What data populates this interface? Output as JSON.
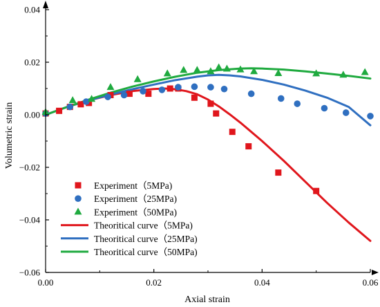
{
  "chart_data": {
    "type": "scatter",
    "title": "",
    "xlabel": "Axial strain",
    "ylabel": "Volumetric strain",
    "xlim": [
      0,
      0.06
    ],
    "ylim": [
      -0.06,
      0.04
    ],
    "xticks": [
      0.0,
      0.02,
      0.04,
      0.06
    ],
    "xtick_labels": [
      "0.00",
      "0.02",
      "0.04",
      "0.06"
    ],
    "yticks": [
      -0.06,
      -0.04,
      -0.02,
      0.0,
      0.02,
      0.04
    ],
    "ytick_labels": [
      "−0.06",
      "−0.04",
      "−0.02",
      "0.00",
      "0.02",
      "0.04"
    ],
    "grid": false,
    "legend_position": "bottom-left",
    "series": [
      {
        "name": "Experiment（5MPa)",
        "kind": "points",
        "marker": "square",
        "color": "#e0161c",
        "points": [
          [
            0.0,
            0.0005
          ],
          [
            0.0025,
            0.0015
          ],
          [
            0.0045,
            0.003
          ],
          [
            0.0065,
            0.004
          ],
          [
            0.008,
            0.0045
          ],
          [
            0.012,
            0.0075
          ],
          [
            0.0155,
            0.008
          ],
          [
            0.019,
            0.008
          ],
          [
            0.023,
            0.01
          ],
          [
            0.0245,
            0.01
          ],
          [
            0.0275,
            0.0065
          ],
          [
            0.0305,
            0.0042
          ],
          [
            0.0315,
            0.0005
          ],
          [
            0.0345,
            -0.0065
          ],
          [
            0.0375,
            -0.012
          ],
          [
            0.043,
            -0.022
          ],
          [
            0.05,
            -0.029
          ]
        ]
      },
      {
        "name": "Experiment（25MPa)",
        "kind": "points",
        "marker": "circle",
        "color": "#2f6fc0",
        "points": [
          [
            0.0,
            0.0005
          ],
          [
            0.0045,
            0.003
          ],
          [
            0.0075,
            0.005
          ],
          [
            0.0115,
            0.0068
          ],
          [
            0.0145,
            0.0075
          ],
          [
            0.018,
            0.009
          ],
          [
            0.0215,
            0.0095
          ],
          [
            0.0245,
            0.0105
          ],
          [
            0.0275,
            0.0107
          ],
          [
            0.0305,
            0.0105
          ],
          [
            0.033,
            0.0098
          ],
          [
            0.038,
            0.008
          ],
          [
            0.0435,
            0.0062
          ],
          [
            0.0465,
            0.0042
          ],
          [
            0.0515,
            0.0025
          ],
          [
            0.0555,
            0.0008
          ],
          [
            0.06,
            -0.0005
          ]
        ]
      },
      {
        "name": "Experiment（50MPa)",
        "kind": "points",
        "marker": "triangle",
        "color": "#1faa3f",
        "points": [
          [
            0.0,
            0.001
          ],
          [
            0.005,
            0.0055
          ],
          [
            0.0085,
            0.006
          ],
          [
            0.012,
            0.0105
          ],
          [
            0.017,
            0.0135
          ],
          [
            0.0225,
            0.0157
          ],
          [
            0.0255,
            0.017
          ],
          [
            0.028,
            0.017
          ],
          [
            0.0305,
            0.0165
          ],
          [
            0.032,
            0.018
          ],
          [
            0.0335,
            0.0175
          ],
          [
            0.036,
            0.0172
          ],
          [
            0.0385,
            0.0165
          ],
          [
            0.043,
            0.0158
          ],
          [
            0.05,
            0.0157
          ],
          [
            0.055,
            0.0152
          ],
          [
            0.059,
            0.0162
          ]
        ]
      },
      {
        "name": "Theoritical curve（5MPa)",
        "kind": "line",
        "color": "#e0161c",
        "points": [
          [
            0.0,
            0.0
          ],
          [
            0.004,
            0.003
          ],
          [
            0.008,
            0.0055
          ],
          [
            0.012,
            0.0075
          ],
          [
            0.016,
            0.009
          ],
          [
            0.02,
            0.0098
          ],
          [
            0.022,
            0.01
          ],
          [
            0.024,
            0.0097
          ],
          [
            0.026,
            0.009
          ],
          [
            0.028,
            0.0078
          ],
          [
            0.03,
            0.0058
          ],
          [
            0.032,
            0.0032
          ],
          [
            0.034,
            0.0002
          ],
          [
            0.036,
            -0.003
          ],
          [
            0.038,
            -0.0065
          ],
          [
            0.04,
            -0.01
          ],
          [
            0.044,
            -0.0175
          ],
          [
            0.048,
            -0.0255
          ],
          [
            0.052,
            -0.0335
          ],
          [
            0.056,
            -0.041
          ],
          [
            0.06,
            -0.048
          ]
        ]
      },
      {
        "name": "Theoritical curve（25MPa)",
        "kind": "line",
        "color": "#2f6fc0",
        "points": [
          [
            0.0,
            0.0
          ],
          [
            0.004,
            0.003
          ],
          [
            0.008,
            0.0055
          ],
          [
            0.012,
            0.0077
          ],
          [
            0.016,
            0.0097
          ],
          [
            0.02,
            0.0115
          ],
          [
            0.024,
            0.0132
          ],
          [
            0.028,
            0.0145
          ],
          [
            0.03,
            0.015
          ],
          [
            0.032,
            0.0152
          ],
          [
            0.034,
            0.015
          ],
          [
            0.036,
            0.0146
          ],
          [
            0.04,
            0.0133
          ],
          [
            0.044,
            0.0115
          ],
          [
            0.048,
            0.0092
          ],
          [
            0.052,
            0.0065
          ],
          [
            0.056,
            0.003
          ],
          [
            0.06,
            -0.004
          ]
        ]
      },
      {
        "name": "Theoritical curve（50MPa)",
        "kind": "line",
        "color": "#1faa3f",
        "points": [
          [
            0.0,
            0.0
          ],
          [
            0.004,
            0.003
          ],
          [
            0.008,
            0.0058
          ],
          [
            0.012,
            0.0084
          ],
          [
            0.016,
            0.0107
          ],
          [
            0.02,
            0.0127
          ],
          [
            0.024,
            0.0145
          ],
          [
            0.028,
            0.016
          ],
          [
            0.032,
            0.017
          ],
          [
            0.036,
            0.0176
          ],
          [
            0.038,
            0.0177
          ],
          [
            0.04,
            0.0176
          ],
          [
            0.044,
            0.0172
          ],
          [
            0.048,
            0.0165
          ],
          [
            0.052,
            0.0157
          ],
          [
            0.056,
            0.0148
          ],
          [
            0.06,
            0.0138
          ]
        ]
      }
    ]
  }
}
